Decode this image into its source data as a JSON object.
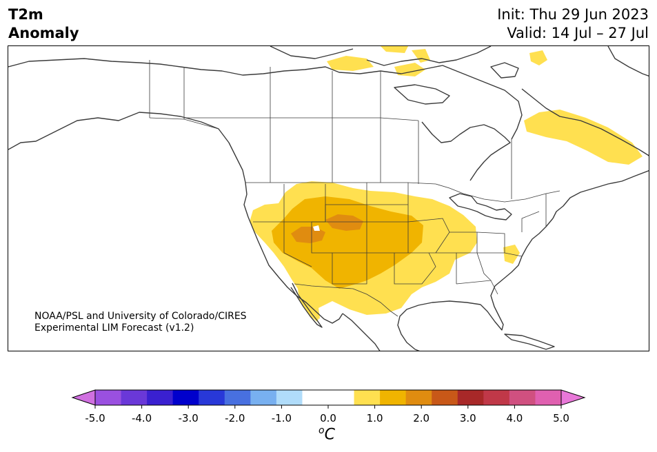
{
  "header": {
    "title_line1": "T2m",
    "title_line2": "Anomaly",
    "init_text": "Init: Thu 29 Jun 2023",
    "valid_text": "Valid: 14 Jul – 27 Jul"
  },
  "map": {
    "credit_line1": "NOAA/PSL and University of Colorado/CIRES",
    "credit_line2": "Experimental LIM Forecast (v1.2)",
    "region": "North America",
    "anomaly_levels_shown": [
      "0.5 to 1.0",
      "1.0 to 1.5",
      "1.5 to 2.0"
    ]
  },
  "colorbar": {
    "ticks": [
      "-5.0",
      "-4.0",
      "-3.0",
      "-2.0",
      "-1.0",
      "0.0",
      "1.0",
      "2.0",
      "3.0",
      "4.0",
      "5.0"
    ],
    "units_main": "C",
    "units_sup": "o",
    "colors": [
      "#d070e0",
      "#9a50e0",
      "#6a38d8",
      "#3a20d0",
      "#0000cc",
      "#2838d8",
      "#4870e0",
      "#78b0f0",
      "#b0dcfa",
      "#ffffff",
      "#ffffff",
      "#ffe050",
      "#f0b400",
      "#e08c10",
      "#c85818",
      "#a82828",
      "#c03848",
      "#d05080",
      "#e060b0",
      "#e878d8"
    ]
  }
}
